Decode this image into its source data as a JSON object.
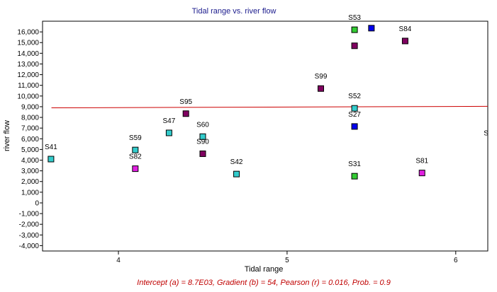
{
  "chart_data": {
    "type": "scatter",
    "title": "Tidal range vs. river flow",
    "xlabel": "Tidal range",
    "ylabel": "river flow",
    "xlim": [
      3.55,
      6.19
    ],
    "ylim": [
      -4500,
      17000
    ],
    "x_ticks": [
      4,
      5,
      6
    ],
    "x_tick_labels": [
      "4",
      "5",
      "6"
    ],
    "y_ticks": [
      -4000,
      -3000,
      -2000,
      -1000,
      0,
      1000,
      2000,
      3000,
      4000,
      5000,
      6000,
      7000,
      8000,
      9000,
      10000,
      11000,
      12000,
      13000,
      14000,
      15000,
      16000
    ],
    "y_tick_labels": [
      "-4,000",
      "-3,000",
      "-2,000",
      "-1,000",
      "0",
      "1,000",
      "2,000",
      "3,000",
      "4,000",
      "5,000",
      "6,000",
      "7,000",
      "8,000",
      "9,000",
      "10,000",
      "11,000",
      "12,000",
      "13,000",
      "14,000",
      "15,000",
      "16,000"
    ],
    "grid": false,
    "points": [
      {
        "label": "S41",
        "x": 3.6,
        "y": 4100,
        "color": "#33cccc"
      },
      {
        "label": "S59",
        "x": 4.1,
        "y": 4950,
        "color": "#33cccc"
      },
      {
        "label": "S82",
        "x": 4.1,
        "y": 3200,
        "color": "#e020e0"
      },
      {
        "label": "S47",
        "x": 4.3,
        "y": 6550,
        "color": "#33cccc"
      },
      {
        "label": "S95",
        "x": 4.4,
        "y": 8350,
        "color": "#800060"
      },
      {
        "label": "S60",
        "x": 4.5,
        "y": 6200,
        "color": "#33cccc"
      },
      {
        "label": "S90",
        "x": 4.5,
        "y": 4600,
        "color": "#800060"
      },
      {
        "label": "S42",
        "x": 4.7,
        "y": 2700,
        "color": "#33cccc"
      },
      {
        "label": "S99",
        "x": 5.2,
        "y": 10700,
        "color": "#800060"
      },
      {
        "label": "S52",
        "x": 5.4,
        "y": 8850,
        "color": "#33cccc"
      },
      {
        "label": "S27",
        "x": 5.4,
        "y": 7150,
        "color": "#0000ee"
      },
      {
        "label": "S31",
        "x": 5.4,
        "y": 2500,
        "color": "#33cc33"
      },
      {
        "label": "S53",
        "x": 5.4,
        "y": 16200,
        "color": "#33cc33"
      },
      {
        "label": "",
        "x": 5.4,
        "y": 14700,
        "color": "#800060"
      },
      {
        "label": "",
        "x": 5.5,
        "y": 16350,
        "color": "#0000ee"
      },
      {
        "label": "S84",
        "x": 5.7,
        "y": 15150,
        "color": "#800060"
      },
      {
        "label": "S81",
        "x": 5.8,
        "y": 2800,
        "color": "#e020e0"
      },
      {
        "label": "S",
        "x": 6.18,
        "y": 5400,
        "color": ""
      }
    ],
    "regression": {
      "intercept": 8700,
      "gradient": 54,
      "color": "#cc0000",
      "caption": "Intercept (a) = 8.7E03, Gradient (b) = 54, Pearson (r) = 0.016, Prob. = 0.9"
    }
  }
}
